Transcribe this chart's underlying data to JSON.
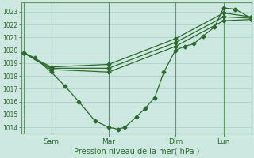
{
  "bg_color": "#cce8e0",
  "grid_color": "#aad4c8",
  "line_color": "#2d6a2d",
  "tick_color": "#2d6a2d",
  "label_color": "#2d6a2d",
  "spine_color": "#5a9a5a",
  "ylim": [
    1013.5,
    1023.7
  ],
  "yticks": [
    1014,
    1015,
    1016,
    1017,
    1018,
    1019,
    1020,
    1021,
    1022,
    1023
  ],
  "xlabel": "Pression niveau de la mer( hPa )",
  "xtick_labels": [
    "Sam",
    "Mar",
    "Dim",
    "Lun"
  ],
  "xtick_positions": [
    0.13,
    0.38,
    0.67,
    0.88
  ],
  "vline_positions": [
    0.01,
    0.13,
    0.38,
    0.67,
    0.88
  ],
  "lines": [
    {
      "x": [
        0.01,
        0.06,
        0.13,
        0.19,
        0.25,
        0.32,
        0.38,
        0.42,
        0.45,
        0.5,
        0.54,
        0.58,
        0.62,
        0.67,
        0.71,
        0.75,
        0.79,
        0.84,
        0.88,
        0.93,
        1.0
      ],
      "y": [
        1019.8,
        1019.4,
        1018.3,
        1017.2,
        1016.0,
        1014.5,
        1014.0,
        1013.85,
        1014.0,
        1014.8,
        1015.5,
        1016.3,
        1018.3,
        1020.0,
        1020.3,
        1020.5,
        1021.1,
        1021.8,
        1023.3,
        1023.2,
        1022.5
      ],
      "marker": "D",
      "ms": 2.5
    },
    {
      "x": [
        0.01,
        0.13,
        0.38,
        0.67,
        0.88,
        1.0
      ],
      "y": [
        1019.8,
        1018.5,
        1018.3,
        1020.3,
        1022.3,
        1022.4
      ],
      "marker": "D",
      "ms": 2.5
    },
    {
      "x": [
        0.01,
        0.13,
        0.38,
        0.67,
        0.88,
        1.0
      ],
      "y": [
        1019.8,
        1018.6,
        1018.6,
        1020.6,
        1022.6,
        1022.5
      ],
      "marker": "D",
      "ms": 2.5
    },
    {
      "x": [
        0.01,
        0.13,
        0.38,
        0.67,
        0.88,
        1.0
      ],
      "y": [
        1019.8,
        1018.7,
        1018.9,
        1020.9,
        1022.9,
        1022.6
      ],
      "marker": "D",
      "ms": 2.5
    }
  ]
}
